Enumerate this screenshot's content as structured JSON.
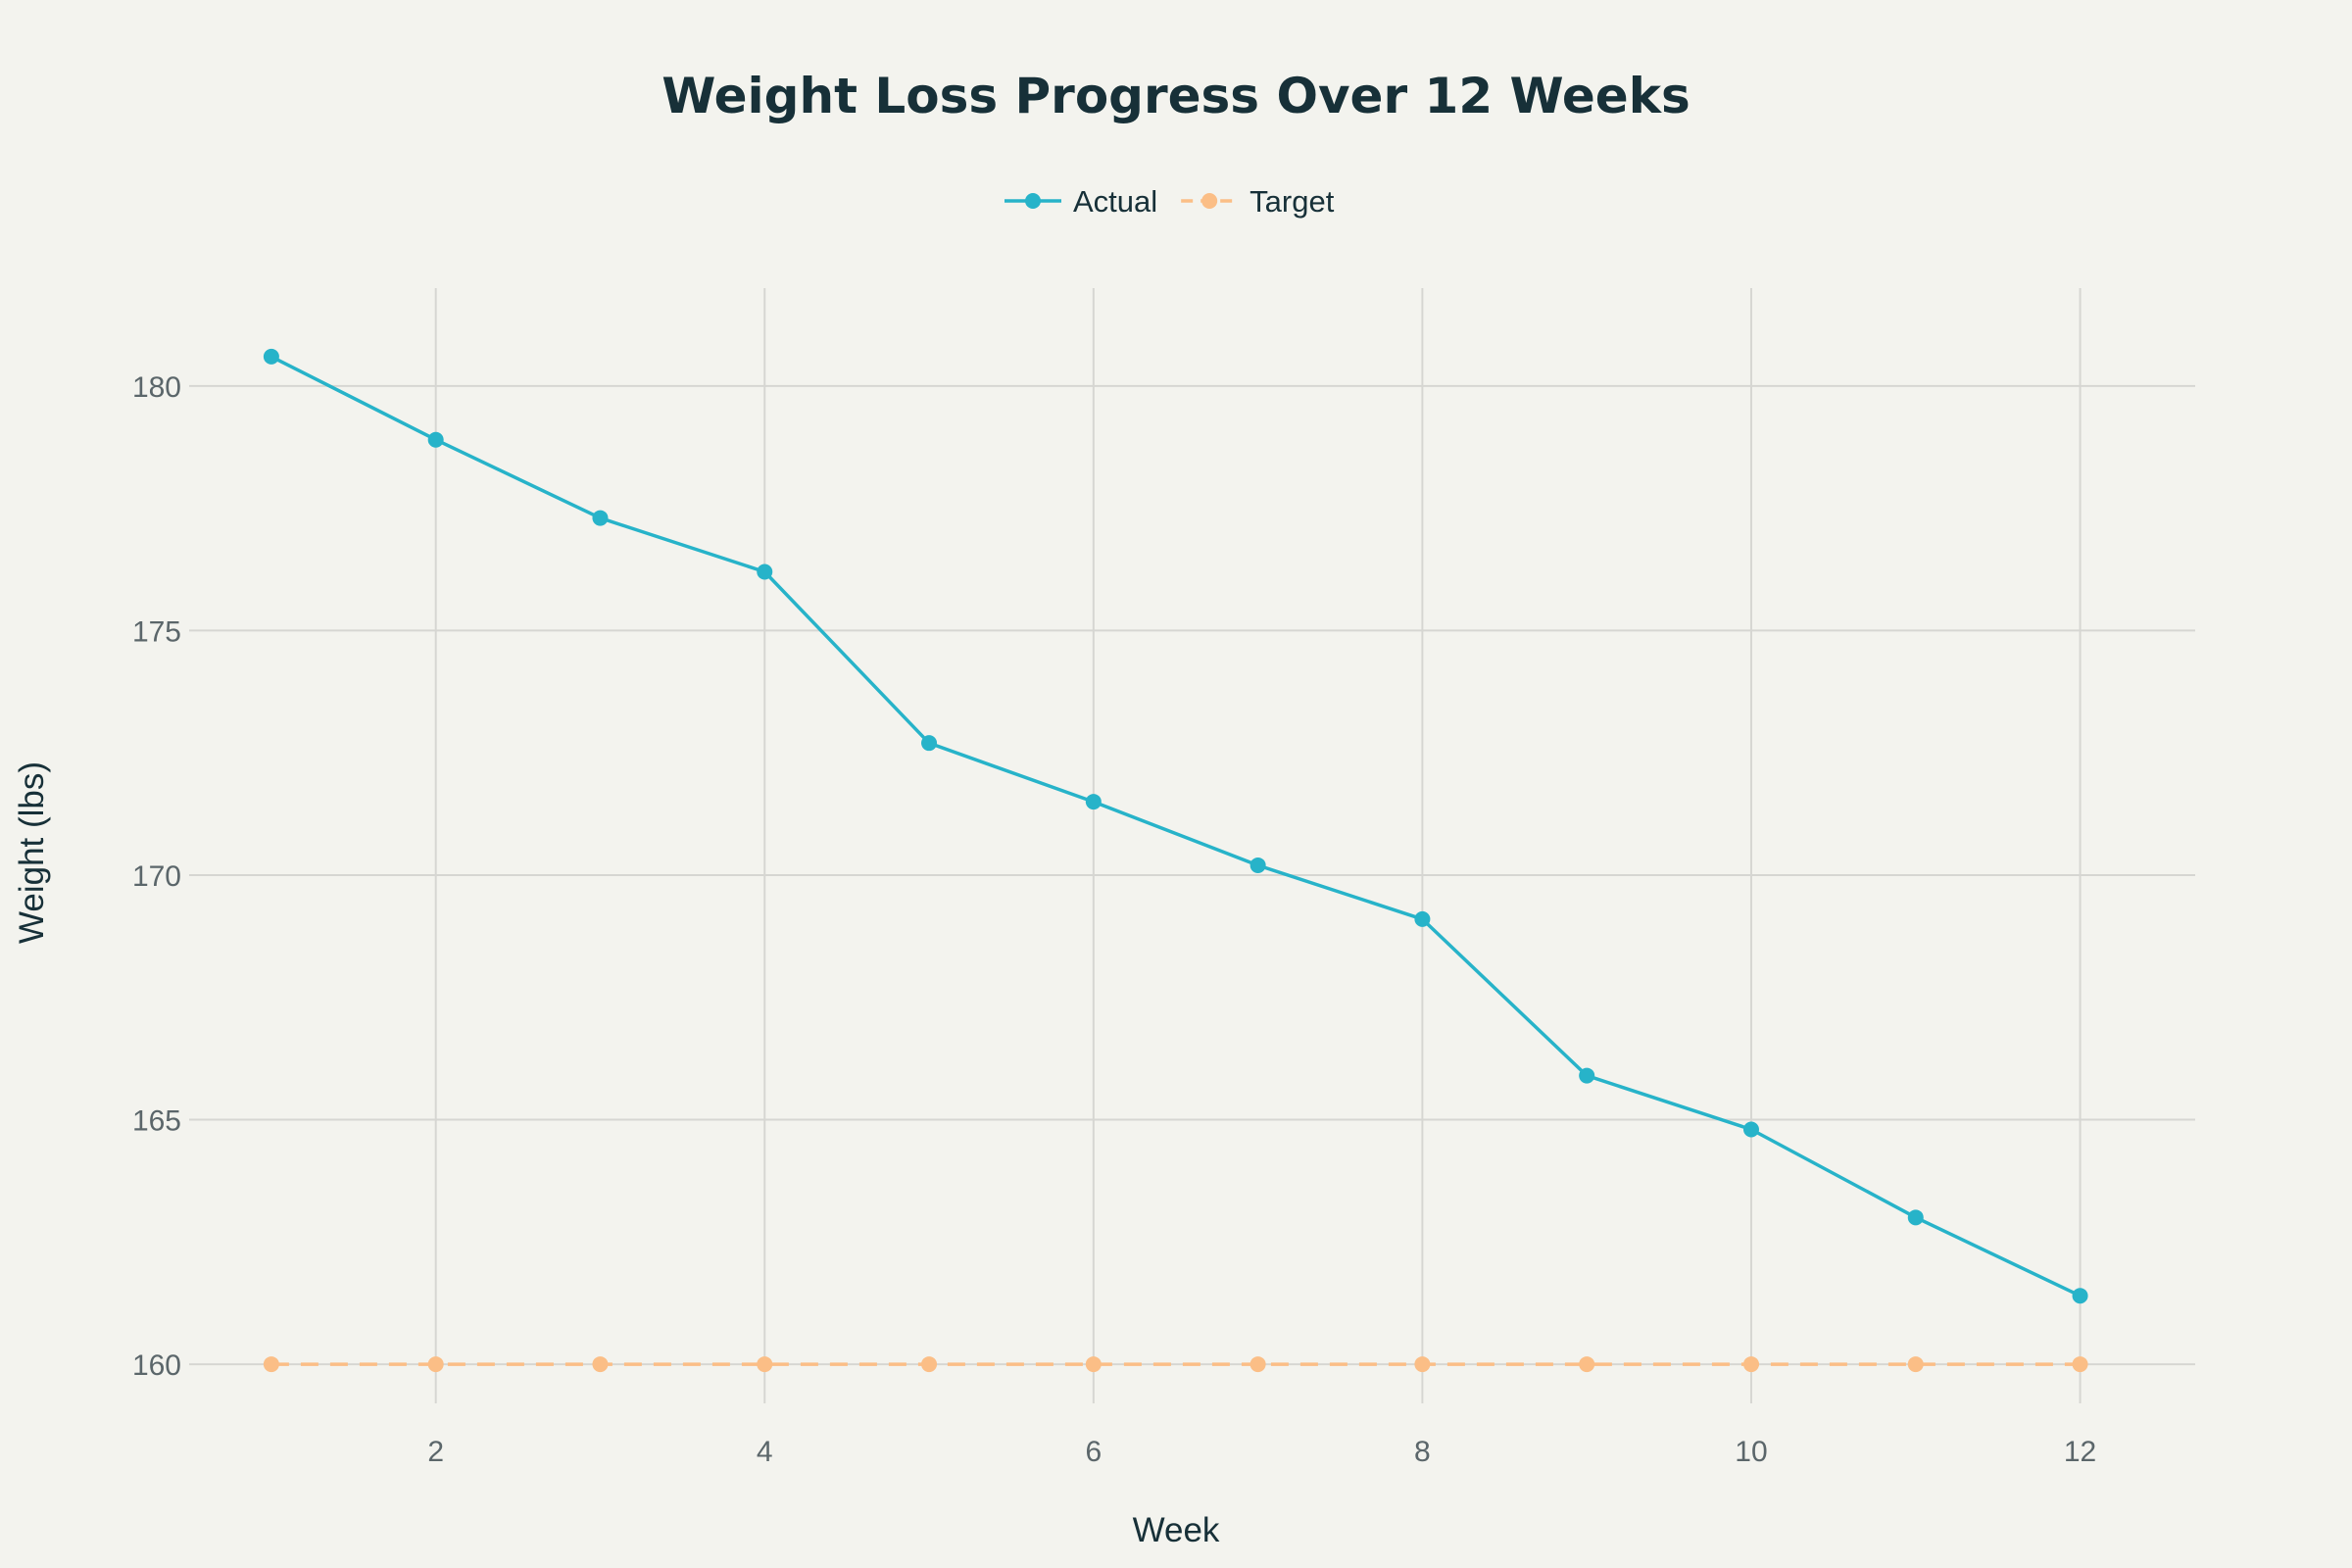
{
  "chart_data": {
    "type": "line",
    "title": "Weight Loss Progress Over 12 Weeks",
    "xlabel": "Week",
    "ylabel": "Weight (lbs)",
    "x": [
      1,
      2,
      3,
      4,
      5,
      6,
      7,
      8,
      9,
      10,
      11,
      12
    ],
    "xlim": [
      0.5,
      12.7
    ],
    "ylim": [
      159.2,
      182
    ],
    "xticks": [
      2,
      4,
      6,
      8,
      10,
      12
    ],
    "yticks": [
      160,
      165,
      170,
      175,
      180
    ],
    "grid": true,
    "legend_position": "top-center",
    "series": [
      {
        "name": "Actual",
        "color": "#27b3c9",
        "dash": "solid",
        "values": [
          180.6,
          178.9,
          177.3,
          176.2,
          172.7,
          171.5,
          170.2,
          169.1,
          165.9,
          164.8,
          163.0,
          161.4
        ]
      },
      {
        "name": "Target",
        "color": "#fbbe86",
        "dash": "dashed",
        "values": [
          160,
          160,
          160,
          160,
          160,
          160,
          160,
          160,
          160,
          160,
          160,
          160
        ]
      }
    ]
  }
}
